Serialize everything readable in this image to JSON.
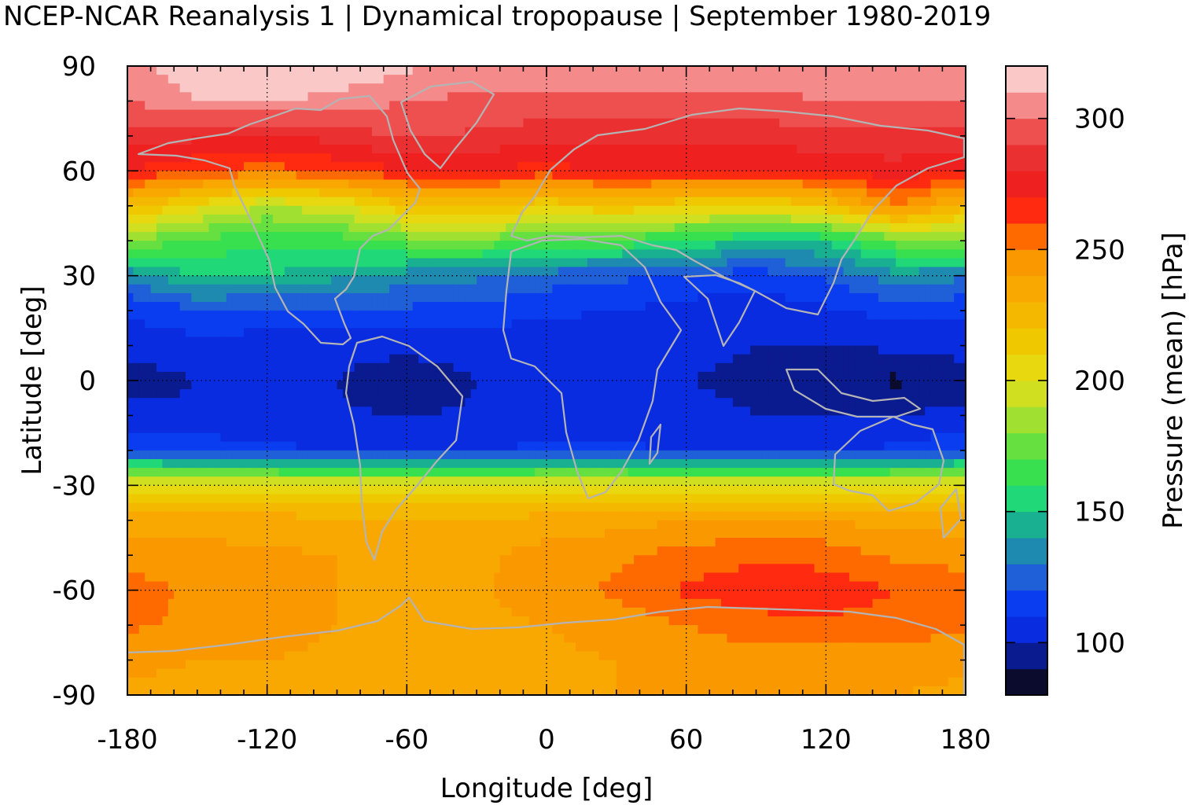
{
  "chart_data": {
    "type": "heatmap",
    "title": "NCEP-NCAR Reanalysis 1 | Dynamical tropopause | September 1980-2019",
    "xlabel": "Longitude [deg]",
    "ylabel": "Latitude [deg]",
    "colorbar_label": "Pressure (mean) [hPa]",
    "xlim": [
      -180,
      180
    ],
    "ylim": [
      -90,
      90
    ],
    "xticks": [
      -180,
      -120,
      -60,
      0,
      60,
      120,
      180
    ],
    "yticks": [
      -90,
      -60,
      -30,
      0,
      30,
      60,
      90
    ],
    "xtick_labels": [
      "-180",
      "-120",
      "-60",
      "0",
      "60",
      "120",
      "180"
    ],
    "ytick_labels": [
      "-90",
      "-60",
      "-30",
      "0",
      "30",
      "60",
      "90"
    ],
    "grid": true,
    "coastlines": true,
    "coastline_color": "#b4b4b4",
    "colorbar": {
      "range": [
        80,
        320
      ],
      "ticks": [
        100,
        150,
        200,
        250,
        300
      ],
      "tick_labels": [
        "100",
        "150",
        "200",
        "250",
        "300"
      ],
      "levels": [
        80,
        90,
        100,
        110,
        120,
        130,
        140,
        150,
        160,
        170,
        180,
        190,
        200,
        210,
        220,
        230,
        240,
        250,
        260,
        270,
        280,
        290,
        300,
        310,
        320
      ],
      "colors": [
        "#0b0b2e",
        "#0a1a8f",
        "#0a2ce0",
        "#0a3cf0",
        "#1f5fd8",
        "#1e8ab0",
        "#18b090",
        "#20d878",
        "#38e050",
        "#66e040",
        "#a0e030",
        "#d0e020",
        "#e8d810",
        "#f0c800",
        "#f4b800",
        "#f8a800",
        "#fa9800",
        "#ff6a00",
        "#ff2a10",
        "#ef2020",
        "#ea3030",
        "#ee5050",
        "#f48a8a",
        "#fbc8c8"
      ]
    },
    "lats": [
      -90,
      -80,
      -70,
      -60,
      -50,
      -40,
      -30,
      -20,
      -10,
      0,
      10,
      20,
      30,
      40,
      50,
      60,
      70,
      80,
      90
    ],
    "lons": [
      -180,
      -150,
      -120,
      -90,
      -60,
      -30,
      0,
      30,
      60,
      90,
      120,
      150,
      180
    ],
    "values_hPa": [
      [
        238,
        238,
        238,
        238,
        238,
        238,
        238,
        240,
        242,
        242,
        242,
        240,
        238
      ],
      [
        242,
        240,
        240,
        238,
        236,
        236,
        238,
        240,
        242,
        245,
        245,
        244,
        242
      ],
      [
        252,
        248,
        244,
        240,
        238,
        238,
        240,
        244,
        250,
        256,
        258,
        256,
        252
      ],
      [
        254,
        248,
        244,
        240,
        238,
        238,
        246,
        252,
        262,
        266,
        266,
        260,
        254
      ],
      [
        246,
        244,
        242,
        240,
        238,
        238,
        244,
        248,
        254,
        258,
        256,
        248,
        246
      ],
      [
        236,
        235,
        234,
        233,
        232,
        232,
        234,
        236,
        240,
        242,
        240,
        236,
        236
      ],
      [
        205,
        205,
        205,
        205,
        205,
        205,
        205,
        205,
        205,
        205,
        205,
        205,
        205
      ],
      [
        118,
        116,
        112,
        110,
        108,
        110,
        112,
        112,
        110,
        108,
        108,
        112,
        118
      ],
      [
        103,
        102,
        102,
        101,
        100,
        101,
        102,
        102,
        101,
        100,
        99,
        100,
        103
      ],
      [
        95,
        100,
        101,
        100,
        92,
        100,
        100,
        100,
        100,
        99,
        95,
        88,
        95
      ],
      [
        104,
        106,
        106,
        103,
        104,
        104,
        103,
        102,
        101,
        100,
        100,
        102,
        104
      ],
      [
        112,
        118,
        116,
        120,
        118,
        116,
        112,
        110,
        106,
        104,
        108,
        114,
        112
      ],
      [
        132,
        152,
        150,
        142,
        135,
        132,
        125,
        122,
        118,
        114,
        122,
        136,
        132
      ],
      [
        180,
        168,
        162,
        165,
        175,
        178,
        168,
        168,
        158,
        150,
        152,
        175,
        180
      ],
      [
        224,
        205,
        190,
        198,
        218,
        222,
        212,
        218,
        212,
        208,
        218,
        250,
        224
      ],
      [
        270,
        262,
        255,
        262,
        270,
        270,
        266,
        272,
        270,
        270,
        272,
        276,
        270
      ],
      [
        286,
        282,
        280,
        284,
        292,
        288,
        284,
        284,
        284,
        284,
        286,
        288,
        286
      ],
      [
        300,
        310,
        312,
        306,
        300,
        298,
        298,
        298,
        298,
        298,
        300,
        300,
        300
      ],
      [
        305,
        318,
        320,
        320,
        312,
        305,
        305,
        305,
        305,
        305,
        305,
        305,
        305
      ]
    ]
  }
}
